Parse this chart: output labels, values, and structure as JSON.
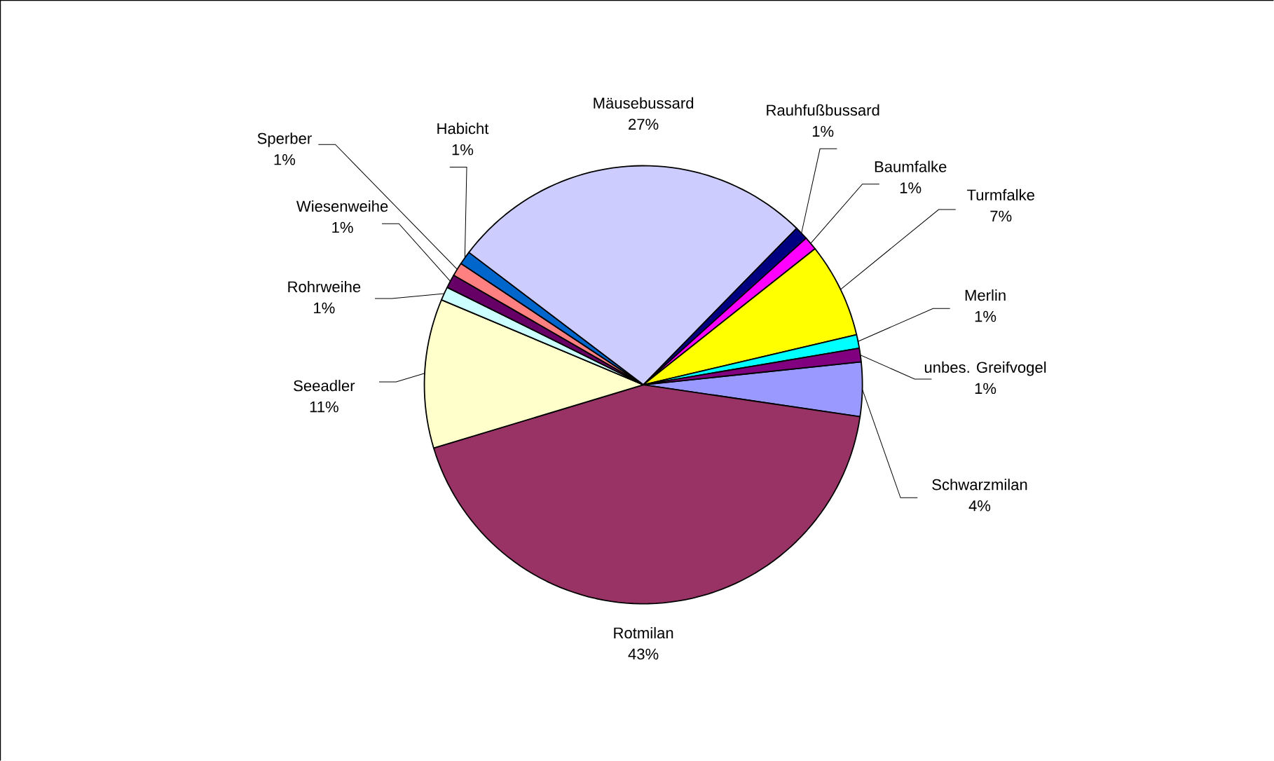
{
  "chart_data": {
    "type": "pie",
    "categories": [
      "Schwarzmilan",
      "Rotmilan",
      "Seeadler",
      "Rohrweihe",
      "Wiesenweihe",
      "Sperber",
      "Habicht",
      "Mäusebussard",
      "Rauhfußbussard",
      "Baumfalke",
      "Turmfalke",
      "Merlin",
      "unbes. Greifvogel"
    ],
    "values": [
      4,
      43,
      11,
      1,
      1,
      1,
      1,
      27,
      1,
      1,
      7,
      1,
      1
    ],
    "value_labels": [
      "4%",
      "43%",
      "11%",
      "1%",
      "1%",
      "1%",
      "1%",
      "27%",
      "1%",
      "1%",
      "7%",
      "1%",
      "1%"
    ],
    "colors": [
      "#9999ff",
      "#993366",
      "#ffffcc",
      "#ccffff",
      "#660066",
      "#ff8080",
      "#0066cc",
      "#ccccff",
      "#000080",
      "#ff00ff",
      "#ffff00",
      "#00ffff",
      "#800080"
    ]
  }
}
